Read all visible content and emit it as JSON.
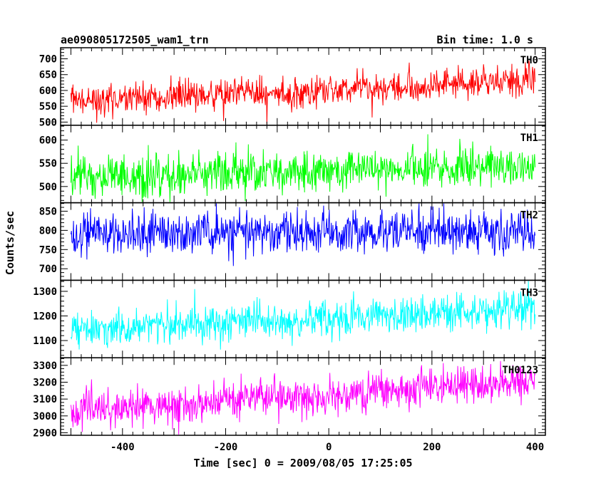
{
  "chart_data": {
    "type": "line",
    "title_left": "ae090805172505_wam1_trn",
    "title_right": "Bin time: 1.0 s",
    "xlabel": "Time [sec] 0 = 2009/08/05 17:25:05",
    "ylabel": "Counts/sec",
    "xlim": [
      -520,
      420
    ],
    "x_ticks": [
      -400,
      -200,
      0,
      200,
      400
    ],
    "x_range": [
      -500,
      400
    ],
    "bin_time": 1.0,
    "grid": false,
    "panels": [
      {
        "name": "TH0",
        "color": "#ff0000",
        "ylim": [
          490,
          735
        ],
        "y_ticks": [
          500,
          550,
          600,
          650,
          700
        ],
        "trend": {
          "start": 565,
          "end": 630
        },
        "noise_sigma": 24
      },
      {
        "name": "TH1",
        "color": "#00ff00",
        "ylim": [
          465,
          632
        ],
        "y_ticks": [
          500,
          550,
          600
        ],
        "trend": {
          "start": 520,
          "end": 545
        },
        "noise_sigma": 23
      },
      {
        "name": "TH2",
        "color": "#0000ff",
        "ylim": [
          670,
          872
        ],
        "y_ticks": [
          700,
          750,
          800,
          850
        ],
        "trend": {
          "start": 795,
          "end": 797
        },
        "noise_sigma": 29
      },
      {
        "name": "TH3",
        "color": "#00ffff",
        "ylim": [
          1030,
          1345
        ],
        "y_ticks": [
          1100,
          1200,
          1300
        ],
        "trend": {
          "start": 1145,
          "end": 1225
        },
        "noise_sigma": 36
      },
      {
        "name": "TH0123",
        "color": "#ff00ff",
        "ylim": [
          2885,
          3345
        ],
        "y_ticks": [
          2900,
          3000,
          3100,
          3200,
          3300
        ],
        "trend": {
          "start": 3030,
          "end": 3200
        },
        "noise_sigma": 55
      }
    ]
  }
}
